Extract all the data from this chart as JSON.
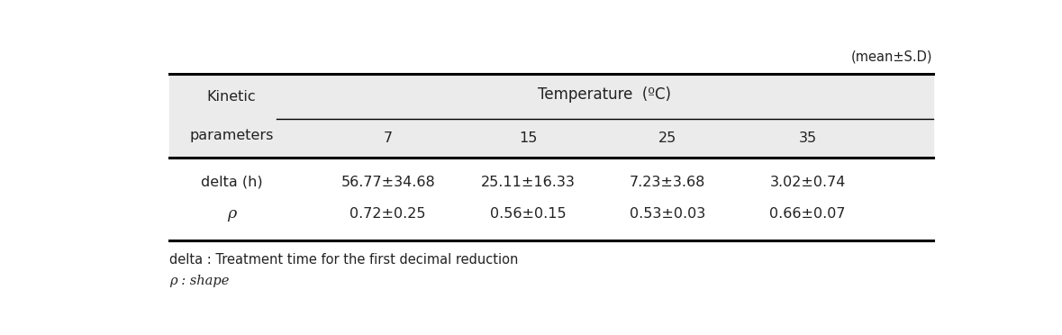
{
  "mean_sd_label": "(mean±S.D)",
  "header_col1_line1": "Kinetic",
  "header_col1_line2": "parameters",
  "header_temp": "Temperature  (ºC)",
  "temp_values": [
    "7",
    "15",
    "25",
    "35"
  ],
  "rows": [
    {
      "param": "delta (h)",
      "values": [
        "56.77±34.68",
        "25.11±16.33",
        "7.23±3.68",
        "3.02±0.74"
      ],
      "italic_param": false
    },
    {
      "param": "ρ",
      "values": [
        "0.72±0.25",
        "0.56±0.15",
        "0.53±0.03",
        "0.66±0.07"
      ],
      "italic_param": true
    }
  ],
  "footnote1_plain": "delta : Treatment time for the first decimal reduction",
  "footnote2_plain": "ρ : shape",
  "bg_color": "#ebebeb",
  "text_color": "#222222",
  "fontsize": 11.5,
  "fontsize_small": 10.5
}
